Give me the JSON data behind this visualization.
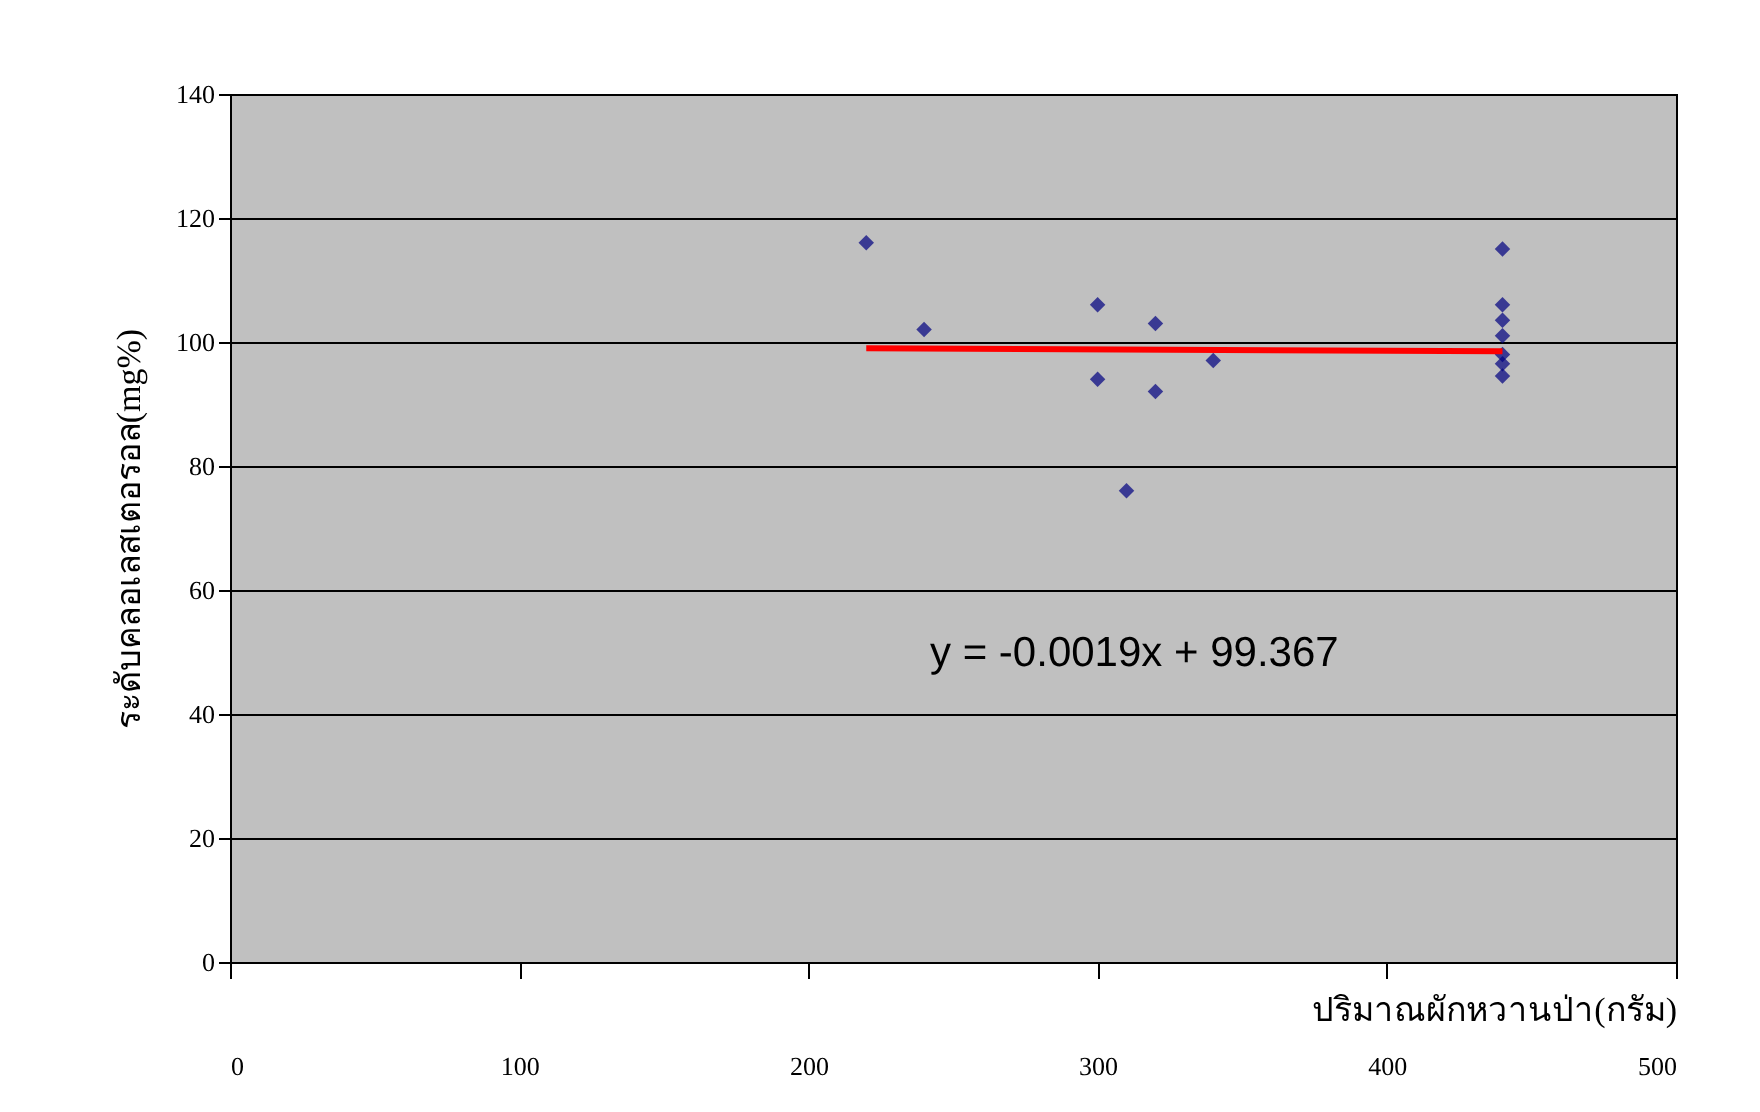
{
  "chart_data": {
    "type": "scatter",
    "xlabel": "ปริมาณผักหวานป่า(กรัม)",
    "ylabel": "ระดับคลอเลสเตอรอล(mg%)",
    "annotations": [
      "y = -0.0019x + 99.367"
    ],
    "series": [
      {
        "color": "#000080",
        "marker": "diamond",
        "x": [
          220,
          240,
          300,
          300,
          310,
          320,
          320,
          340,
          440,
          440,
          440,
          440,
          440,
          440,
          440
        ],
        "values": [
          116,
          102,
          106,
          94,
          76,
          103,
          92,
          97,
          115,
          106,
          103.5,
          101,
          98,
          96.5,
          94.5
        ]
      },
      {
        "type": "line",
        "marker": "none",
        "color": "#ff0000",
        "x": [
          220,
          440
        ],
        "values": [
          99,
          98.5
        ]
      }
    ],
    "xlim": [
      0,
      500
    ],
    "xticks": [
      0,
      100,
      200,
      300,
      400,
      500
    ],
    "ylim": [
      0,
      140
    ],
    "yticks": [
      0,
      20,
      40,
      60,
      80,
      100,
      120,
      140
    ],
    "grid": "y"
  }
}
